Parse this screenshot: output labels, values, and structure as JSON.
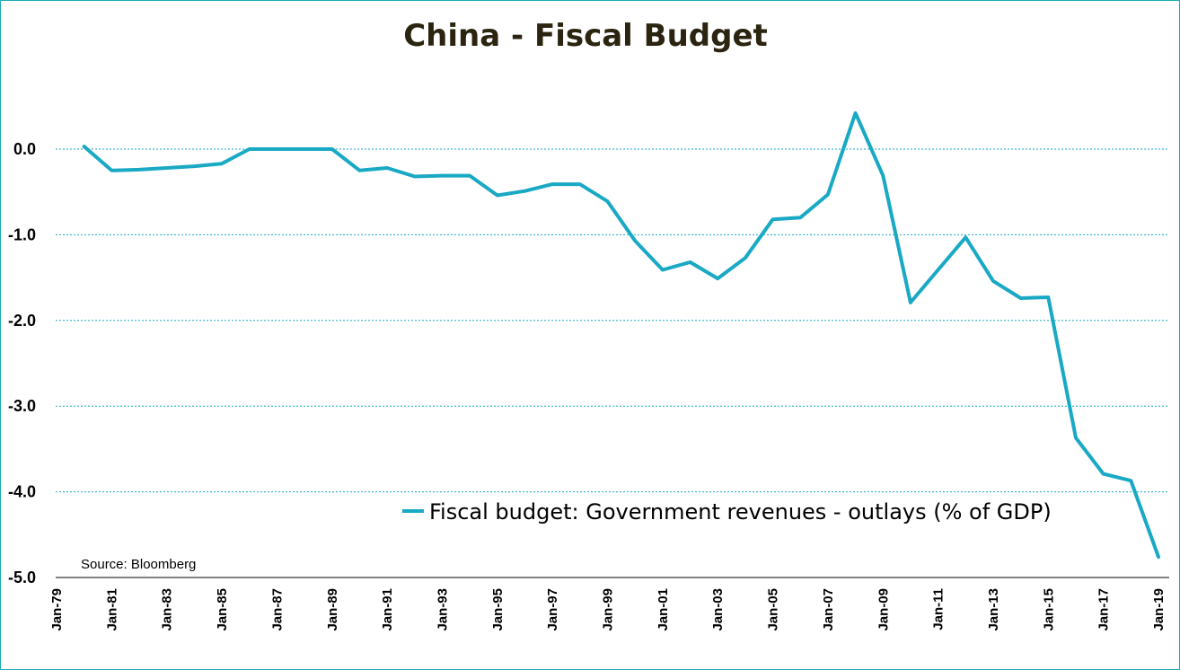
{
  "chart_data": {
    "type": "line",
    "title": "China - Fiscal Budget",
    "source": "Source: Bloomberg",
    "series": [
      {
        "name": "Fiscal budget: Government revenues - outlays (% of GDP)",
        "color": "#19a9c4",
        "x": [
          "1980",
          "1981",
          "1982",
          "1983",
          "1984",
          "1985",
          "1986",
          "1987",
          "1988",
          "1989",
          "1990",
          "1991",
          "1992",
          "1993",
          "1994",
          "1995",
          "1996",
          "1997",
          "1998",
          "1999",
          "2000",
          "2001",
          "2002",
          "2003",
          "2004",
          "2005",
          "2006",
          "2007",
          "2008",
          "2009",
          "2010",
          "2011",
          "2012",
          "2013",
          "2014",
          "2015",
          "2016",
          "2017",
          "2018",
          "2019"
        ],
        "values": [
          0.03,
          -0.25,
          -0.24,
          -0.22,
          -0.2,
          -0.17,
          0.0,
          0.0,
          0.0,
          0.0,
          -0.25,
          -0.22,
          -0.32,
          -0.31,
          -0.31,
          -0.54,
          -0.49,
          -0.41,
          -0.41,
          -0.61,
          -1.07,
          -1.41,
          -1.32,
          -1.51,
          -1.27,
          -0.82,
          -0.8,
          -0.53,
          0.42,
          -0.31,
          -1.79,
          -1.41,
          -1.03,
          -1.54,
          -1.74,
          -1.73,
          -3.37,
          -3.79,
          -3.87,
          -4.76
        ]
      }
    ],
    "x_ticks": [
      "Jan-79",
      "Jan-81",
      "Jan-83",
      "Jan-85",
      "Jan-87",
      "Jan-89",
      "Jan-91",
      "Jan-93",
      "Jan-95",
      "Jan-97",
      "Jan-99",
      "Jan-01",
      "Jan-03",
      "Jan-05",
      "Jan-07",
      "Jan-09",
      "Jan-11",
      "Jan-13",
      "Jan-15",
      "Jan-17",
      "Jan-19"
    ],
    "y_ticks": [
      "0.0",
      "-1.0",
      "-2.0",
      "-3.0",
      "-4.0",
      "-5.0"
    ],
    "x_range": [
      "1979",
      "2019"
    ],
    "ylim": [
      -5.0,
      0.0
    ],
    "grid": "horizontal dotted",
    "legend_position": "bottom-right",
    "gridline_color": "#19a9c4",
    "axis_color": "#000000"
  }
}
